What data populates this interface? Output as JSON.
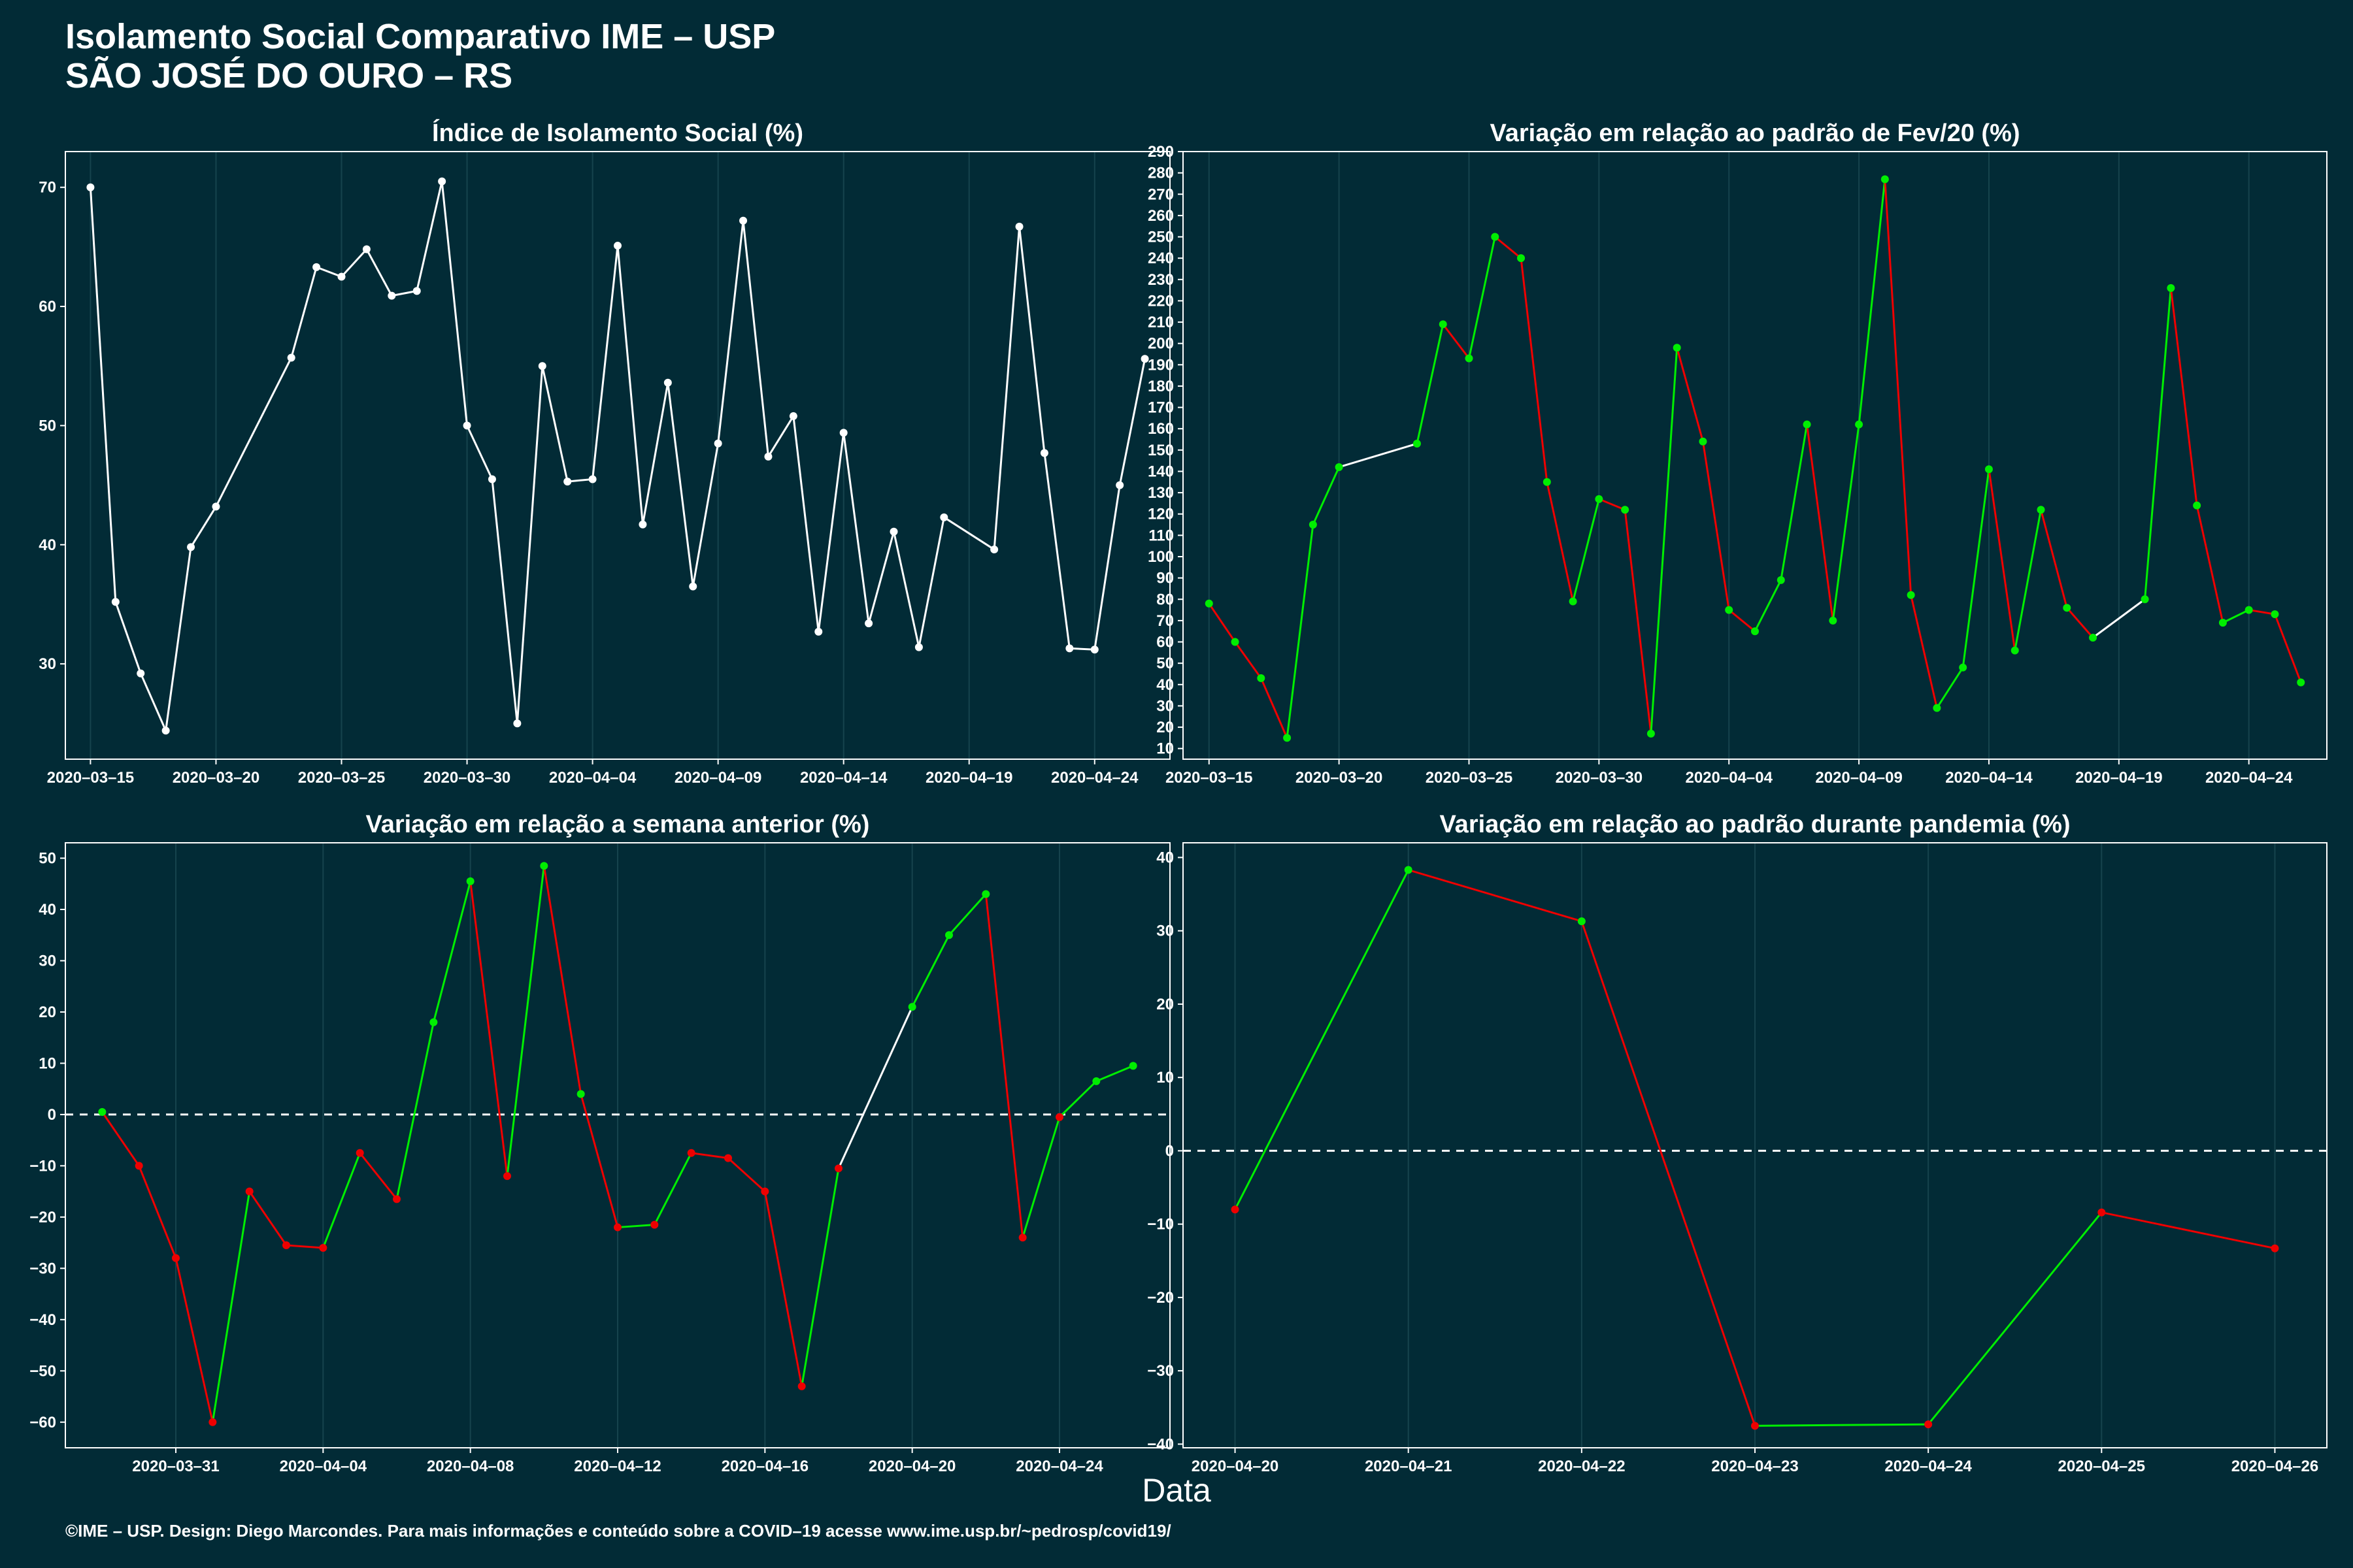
{
  "title_line1": "Isolamento Social Comparativo IME – USP",
  "title_line2": "SÃO JOSÉ DO OURO – RS",
  "xlabel": "Data",
  "footer": "©IME – USP. Design: Diego Marcondes. Para mais informações e conteúdo sobre a COVID–19 acesse www.ime.usp.br/~pedrosp/covid19/",
  "colors": {
    "background": "#022b36",
    "increase": "#00ee00",
    "decrease": "#ee0000",
    "neutral": "#ffffff"
  },
  "chart_data": [
    {
      "type": "line",
      "title": "Índice de Isolamento Social (%)",
      "x": [
        "2020-03-15",
        "2020-03-16",
        "2020-03-17",
        "2020-03-18",
        "2020-03-19",
        "2020-03-20",
        "2020-03-23",
        "2020-03-24",
        "2020-03-25",
        "2020-03-26",
        "2020-03-27",
        "2020-03-28",
        "2020-03-29",
        "2020-03-30",
        "2020-03-31",
        "2020-04-01",
        "2020-04-02",
        "2020-04-03",
        "2020-04-04",
        "2020-04-05",
        "2020-04-06",
        "2020-04-07",
        "2020-04-08",
        "2020-04-09",
        "2020-04-10",
        "2020-04-11",
        "2020-04-12",
        "2020-04-13",
        "2020-04-14",
        "2020-04-15",
        "2020-04-16",
        "2020-04-17",
        "2020-04-18",
        "2020-04-20",
        "2020-04-21",
        "2020-04-22",
        "2020-04-23",
        "2020-04-24",
        "2020-04-25",
        "2020-04-26"
      ],
      "y": [
        70.0,
        35.2,
        29.2,
        24.4,
        39.8,
        43.2,
        55.7,
        63.3,
        62.5,
        64.8,
        60.9,
        61.3,
        70.5,
        50.0,
        45.5,
        25.0,
        55.0,
        45.3,
        45.5,
        65.1,
        41.7,
        53.6,
        36.5,
        48.5,
        67.2,
        47.4,
        50.8,
        32.7,
        49.4,
        33.4,
        41.1,
        31.4,
        42.3,
        39.6,
        66.7,
        47.7,
        31.3,
        31.2,
        45.0,
        55.6
      ],
      "x_ticks": [
        "2020-03-15",
        "2020-03-20",
        "2020-03-25",
        "2020-03-30",
        "2020-04-04",
        "2020-04-09",
        "2020-04-14",
        "2020-04-19",
        "2020-04-24"
      ],
      "y_ticks": [
        30,
        40,
        50,
        60,
        70
      ],
      "ylim": [
        22,
        73
      ],
      "xlim": [
        "2020-03-14",
        "2020-04-27"
      ],
      "point_color": "white"
    },
    {
      "type": "line",
      "title": "Variação em relação ao padrão de Fev/20 (%)",
      "x": [
        "2020-03-15",
        "2020-03-16",
        "2020-03-17",
        "2020-03-18",
        "2020-03-19",
        "2020-03-20",
        "2020-03-23",
        "2020-03-24",
        "2020-03-25",
        "2020-03-26",
        "2020-03-27",
        "2020-03-28",
        "2020-03-29",
        "2020-03-30",
        "2020-03-31",
        "2020-04-01",
        "2020-04-02",
        "2020-04-03",
        "2020-04-04",
        "2020-04-05",
        "2020-04-06",
        "2020-04-07",
        "2020-04-08",
        "2020-04-09",
        "2020-04-10",
        "2020-04-11",
        "2020-04-12",
        "2020-04-13",
        "2020-04-14",
        "2020-04-15",
        "2020-04-16",
        "2020-04-17",
        "2020-04-18",
        "2020-04-20",
        "2020-04-21",
        "2020-04-22",
        "2020-04-23",
        "2020-04-24",
        "2020-04-25",
        "2020-04-26"
      ],
      "y": [
        78,
        60,
        43,
        15,
        115,
        142,
        153,
        209,
        193,
        250,
        240,
        135,
        79,
        127,
        122,
        17,
        198,
        154,
        75,
        65,
        89,
        162,
        70,
        162,
        277,
        82,
        29,
        48,
        141,
        56,
        122,
        76,
        62,
        80,
        226,
        124,
        69,
        75,
        73,
        41
      ],
      "x_ticks": [
        "2020-03-15",
        "2020-03-20",
        "2020-03-25",
        "2020-03-30",
        "2020-04-04",
        "2020-04-09",
        "2020-04-14",
        "2020-04-19",
        "2020-04-24"
      ],
      "y_ticks": [
        10,
        20,
        30,
        40,
        50,
        60,
        70,
        80,
        90,
        100,
        110,
        120,
        130,
        140,
        150,
        160,
        170,
        180,
        190,
        200,
        210,
        220,
        230,
        240,
        250,
        260,
        270,
        280,
        290
      ],
      "ylim": [
        5,
        290
      ],
      "xlim": [
        "2020-03-14",
        "2020-04-27"
      ],
      "point_color": "green"
    },
    {
      "type": "line",
      "title": "Variação em relação a semana anterior (%)",
      "x": [
        "2020-03-29",
        "2020-03-30",
        "2020-03-31",
        "2020-04-01",
        "2020-04-02",
        "2020-04-03",
        "2020-04-04",
        "2020-04-05",
        "2020-04-06",
        "2020-04-07",
        "2020-04-08",
        "2020-04-09",
        "2020-04-10",
        "2020-04-11",
        "2020-04-12",
        "2020-04-13",
        "2020-04-14",
        "2020-04-15",
        "2020-04-16",
        "2020-04-17",
        "2020-04-18",
        "2020-04-20",
        "2020-04-21",
        "2020-04-22",
        "2020-04-23",
        "2020-04-24",
        "2020-04-25",
        "2020-04-26"
      ],
      "y": [
        0.5,
        -10,
        -28,
        -60,
        -15,
        -25.5,
        -26,
        -7.5,
        -16.5,
        18,
        45.5,
        -12,
        48.5,
        4,
        -22,
        -21.5,
        -7.5,
        -8.5,
        -15,
        -53,
        -10.5,
        21,
        35,
        43,
        -24,
        -0.5,
        6.5,
        9.5
      ],
      "x_ticks": [
        "2020-03-31",
        "2020-04-04",
        "2020-04-08",
        "2020-04-12",
        "2020-04-16",
        "2020-04-20",
        "2020-04-24"
      ],
      "y_ticks": [
        -60,
        -50,
        -40,
        -30,
        -20,
        -10,
        0,
        10,
        20,
        30,
        40,
        50
      ],
      "ylim": [
        -65,
        53
      ],
      "xlim": [
        "2020-03-28",
        "2020-04-27"
      ],
      "reference_line": 0
    },
    {
      "type": "line",
      "title": "Variação em relação ao padrão durante pandemia (%)",
      "x": [
        "2020-04-20",
        "2020-04-21",
        "2020-04-22",
        "2020-04-23",
        "2020-04-24",
        "2020-04-25",
        "2020-04-26"
      ],
      "y": [
        -8,
        38.3,
        31.3,
        -37.5,
        -37.3,
        -8.4,
        -13.3
      ],
      "x_ticks": [
        "2020-04-20",
        "2020-04-21",
        "2020-04-22",
        "2020-04-23",
        "2020-04-24",
        "2020-04-25",
        "2020-04-26"
      ],
      "y_ticks": [
        -40,
        -30,
        -20,
        -10,
        0,
        10,
        20,
        30,
        40
      ],
      "ylim": [
        -40.5,
        42
      ],
      "xlim": [
        "2020-04-19.7",
        "2020-04-26.3"
      ],
      "reference_line": 0
    }
  ]
}
